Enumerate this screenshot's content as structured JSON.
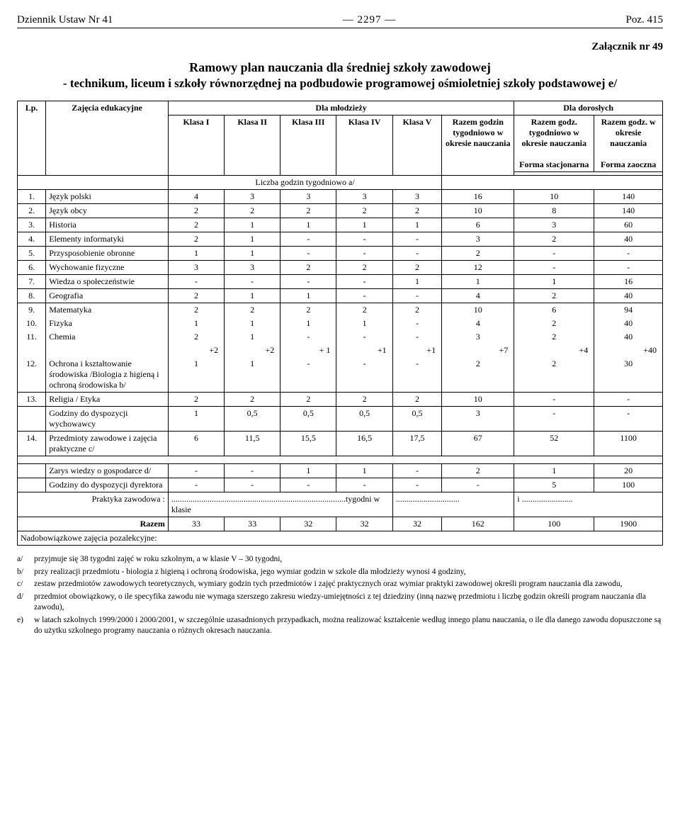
{
  "header": {
    "left": "Dziennik Ustaw Nr 41",
    "mid": "— 2297 —",
    "right": "Poz. 415"
  },
  "attachment": "Załącznik nr 49",
  "title": "Ramowy plan nauczania dla średniej szkoły zawodowej",
  "subtitle": "- technikum, liceum i szkoły równorzędnej na podbudowie programowej ośmioletniej szkoły podstawowej e/",
  "th": {
    "lp": "Lp.",
    "zaj": "Zajęcia edukacyjne",
    "mlod": "Dla młodzieży",
    "dor": "Dla dorosłych",
    "k1": "Klasa I",
    "k2": "Klasa II",
    "k3": "Klasa III",
    "k4": "Klasa IV",
    "k5": "Klasa V",
    "razem_g": "Razem godzin tygodniowo w okresie nauczania",
    "razem_t": "Razem godz. tygodniowo w okresie nauczania",
    "razem_o": "Razem godz. w okresie nauczania",
    "forma_s": "Forma stacjonarna",
    "forma_z": "Forma zaoczna",
    "liczba": "Liczba godzin tygodniowo a/"
  },
  "rows": [
    {
      "n": "1.",
      "s": "Język polski",
      "c": [
        "4",
        "3",
        "3",
        "3",
        "3",
        "16",
        "10",
        "140"
      ]
    },
    {
      "n": "2.",
      "s": "Język obcy",
      "c": [
        "2",
        "2",
        "2",
        "2",
        "2",
        "10",
        "8",
        "140"
      ]
    },
    {
      "n": "3.",
      "s": "Historia",
      "c": [
        "2",
        "1",
        "1",
        "1",
        "1",
        "6",
        "3",
        "60"
      ]
    },
    {
      "n": "4.",
      "s": "Elementy informatyki",
      "c": [
        "2",
        "1",
        "-",
        "-",
        "-",
        "3",
        "2",
        "40"
      ]
    },
    {
      "n": "5.",
      "s": "Przysposobienie obronne",
      "c": [
        "1",
        "1",
        "-",
        "-",
        "-",
        "2",
        "-",
        "-"
      ]
    },
    {
      "n": "6.",
      "s": "Wychowanie fizyczne",
      "c": [
        "3",
        "3",
        "2",
        "2",
        "2",
        "12",
        "-",
        "-"
      ]
    },
    {
      "n": "7.",
      "s": "Wiedza o społeczeństwie",
      "c": [
        "-",
        "-",
        "-",
        "-",
        "1",
        "1",
        "1",
        "16"
      ]
    },
    {
      "n": "8.",
      "s": "Geografia",
      "c": [
        "2",
        "1",
        "1",
        "-",
        "-",
        "4",
        "2",
        "40"
      ]
    }
  ],
  "block": [
    {
      "n": "9.",
      "s": "Matematyka",
      "c": [
        "2",
        "2",
        "2",
        "2",
        "2",
        "10",
        "6",
        "94"
      ]
    },
    {
      "n": "10.",
      "s": "Fizyka",
      "c": [
        "1",
        "1",
        "1",
        "1",
        "-",
        "4",
        "2",
        "40"
      ]
    },
    {
      "n": "11.",
      "s": "Chemia",
      "c": [
        "2",
        "1",
        "-",
        "-",
        "-",
        "3",
        "2",
        "40"
      ]
    },
    {
      "n": "",
      "s": "",
      "c": [
        "+2",
        "+2",
        "+ 1",
        "+1",
        "+1",
        "+7",
        "+4",
        "+40"
      ]
    },
    {
      "n": "12.",
      "s": "Ochrona i kształtowanie środowiska /Biologia z higieną i ochroną środowiska    b/",
      "c": [
        "1",
        "1",
        "-",
        "-",
        "-",
        "2",
        "2",
        "30"
      ]
    }
  ],
  "rows2": [
    {
      "n": "13.",
      "s": "Religia / Etyka",
      "c": [
        "2",
        "2",
        "2",
        "2",
        "2",
        "10",
        "-",
        "-"
      ]
    },
    {
      "n": "",
      "s": "Godziny do dyspozycji wychowawcy",
      "c": [
        "1",
        "0,5",
        "0,5",
        "0,5",
        "0,5",
        "3",
        "-",
        "-"
      ]
    },
    {
      "n": "14.",
      "s": "Przedmioty zawodowe i zajęcia praktyczne c/",
      "c": [
        "6",
        "11,5",
        "15,5",
        "16,5",
        "17,5",
        "67",
        "52",
        "1100"
      ]
    }
  ],
  "rows3": [
    {
      "n": "",
      "s": "Zarys wiedzy o gospodarce    d/",
      "c": [
        "-",
        "-",
        "1",
        "1",
        "-",
        "2",
        "1",
        "20"
      ]
    },
    {
      "n": "",
      "s": "Godziny do dyspozycji dyrektora",
      "c": [
        "-",
        "-",
        "-",
        "-",
        "-",
        "-",
        "5",
        "100"
      ]
    }
  ],
  "prakt": {
    "label": "Praktyka zawodowa :",
    "mid": "tygodni w klasie",
    "dots": "..................................................................................",
    "dots2": "..............................",
    "dots3": "i ........................"
  },
  "razem": {
    "label": "Razem",
    "c": [
      "33",
      "33",
      "32",
      "32",
      "32",
      "162",
      "100",
      "1900"
    ]
  },
  "nadob": "Nadobowiązkowe zajęcia pozalekcyjne:",
  "notes": [
    {
      "k": "a/",
      "t": "przyjmuje się 38 tygodni zajęć w roku szkolnym, a w klasie V – 30 tygodni,"
    },
    {
      "k": "b/",
      "t": "przy realizacji przedmiotu - biologia z higieną i ochroną środowiska, jego wymiar godzin w szkole dla młodzieży wynosi 4 godziny,"
    },
    {
      "k": "c/",
      "t": "zestaw przedmiotów zawodowych teoretycznych, wymiary godzin tych przedmiotów i zajęć praktycznych oraz wymiar praktyki zawodowej określi program nauczania dla zawodu,"
    },
    {
      "k": "d/",
      "t": "przedmiot obowiązkowy, o ile specyfika zawodu nie wymaga szerszego zakresu wiedzy-umiejętności z tej dziedziny (inną nazwę  przedmiotu i liczbę godzin określi program nauczania dla zawodu),"
    },
    {
      "k": "e)",
      "t": "w latach szkolnych 1999/2000 i 2000/2001, w szczególnie uzasadnionych przypadkach, można realizować kształcenie według innego planu nauczania, o ile dla danego zawodu dopuszczone są do użytku szkolnego programy nauczania o różnych okresach nauczania."
    }
  ]
}
